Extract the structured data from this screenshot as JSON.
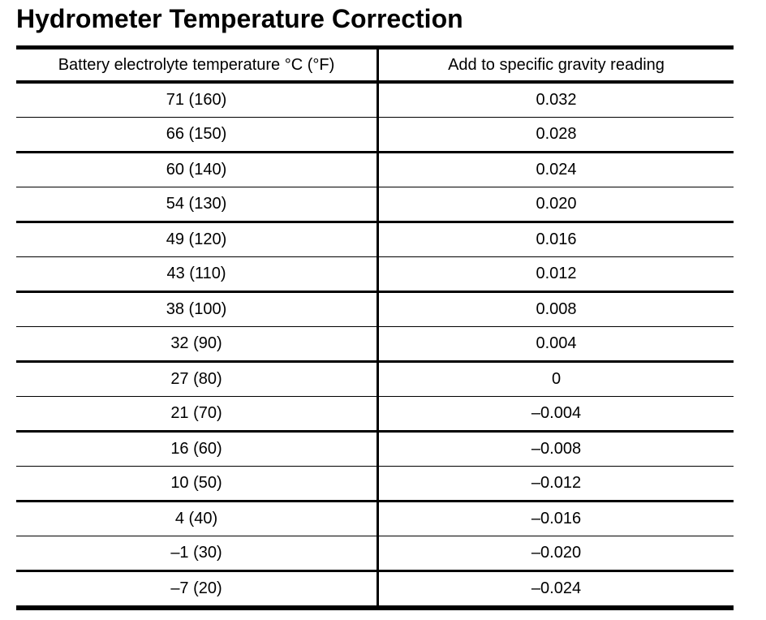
{
  "page": {
    "title": "Hydrometer Temperature Correction"
  },
  "colors": {
    "background": "#ffffff",
    "text": "#000000",
    "rule": "#000000"
  },
  "table": {
    "columns": [
      "Battery electrolyte temperature °C (°F)",
      "Add to specific gravity reading"
    ],
    "rows": [
      {
        "temperature": "71 (160)",
        "correction": "0.032"
      },
      {
        "temperature": "66 (150)",
        "correction": "0.028"
      },
      {
        "temperature": "60 (140)",
        "correction": "0.024"
      },
      {
        "temperature": "54 (130)",
        "correction": "0.020"
      },
      {
        "temperature": "49 (120)",
        "correction": "0.016"
      },
      {
        "temperature": "43 (110)",
        "correction": "0.012"
      },
      {
        "temperature": "38 (100)",
        "correction": "0.008"
      },
      {
        "temperature": "32 (90)",
        "correction": "0.004"
      },
      {
        "temperature": "27 (80)",
        "correction": "0"
      },
      {
        "temperature": "21 (70)",
        "correction": "–0.004"
      },
      {
        "temperature": "16 (60)",
        "correction": "–0.008"
      },
      {
        "temperature": "10 (50)",
        "correction": "–0.012"
      },
      {
        "temperature": "4 (40)",
        "correction": "–0.016"
      },
      {
        "temperature": "–1 (30)",
        "correction": "–0.020"
      },
      {
        "temperature": "–7 (20)",
        "correction": "–0.024"
      }
    ]
  }
}
